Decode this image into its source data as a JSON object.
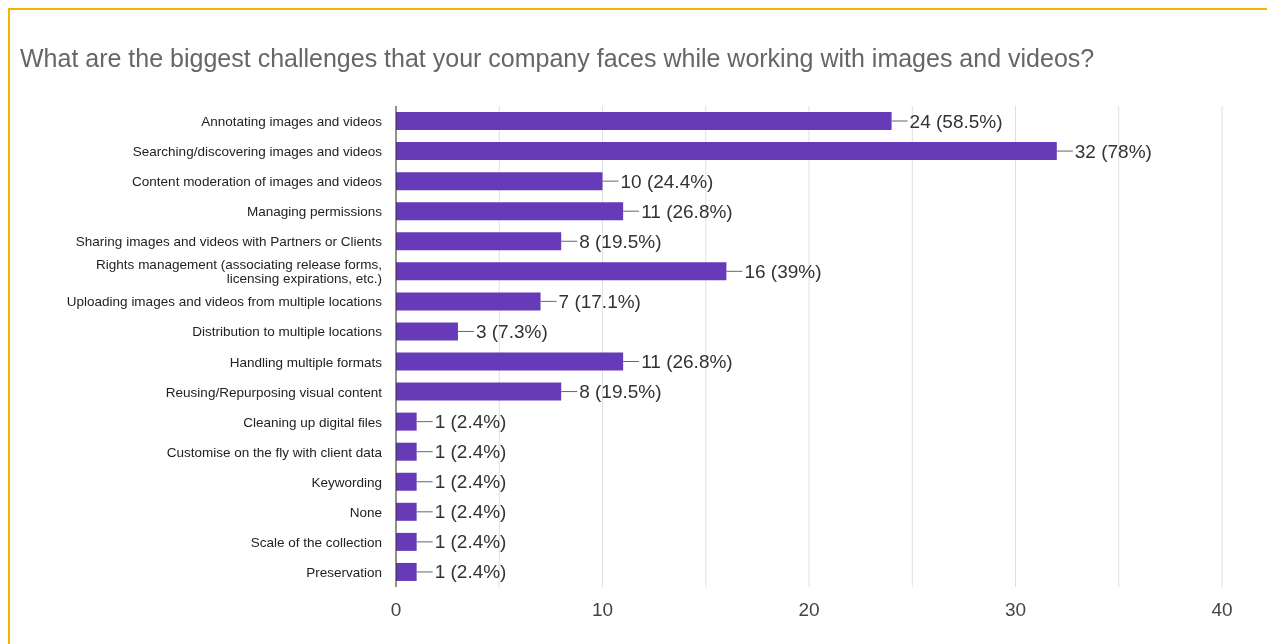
{
  "chart_data": {
    "type": "bar",
    "orientation": "horizontal",
    "title": "What are the biggest challenges that your company faces while working with images and videos?",
    "categories": [
      "Annotating images and videos",
      "Searching/discovering images and videos",
      "Content moderation of images and videos",
      "Managing permissions",
      "Sharing images and videos with Partners or Clients",
      "Rights management (associating release forms, licensing expirations, etc.)",
      "Uploading images and videos from multiple locations",
      "Distribution to multiple locations",
      "Handling multiple formats",
      "Reusing/Repurposing visual content",
      "Cleaning up digital files",
      "Customise on the fly with client data",
      "Keywording",
      "None",
      "Scale of the collection",
      "Preservation"
    ],
    "values": [
      24,
      32,
      10,
      11,
      8,
      16,
      7,
      3,
      11,
      8,
      1,
      1,
      1,
      1,
      1,
      1
    ],
    "value_labels": [
      "24 (58.5%)",
      "32 (78%)",
      "10 (24.4%)",
      "11 (26.8%)",
      "8 (19.5%)",
      "16 (39%)",
      "7 (17.1%)",
      "3 (7.3%)",
      "11 (26.8%)",
      "8 (19.5%)",
      "1 (2.4%)",
      "1 (2.4%)",
      "1 (2.4%)",
      "1 (2.4%)",
      "1 (2.4%)",
      "1 (2.4%)"
    ],
    "color": "#673ab7",
    "xlim": [
      0,
      40
    ],
    "xticks": [
      0,
      {
        "value": 5,
        "label": null
      },
      10,
      {
        "value": 15,
        "label": null
      },
      20,
      {
        "value": 25,
        "label": null
      },
      30,
      {
        "value": 35,
        "label": null
      },
      40
    ],
    "grid": "x"
  }
}
